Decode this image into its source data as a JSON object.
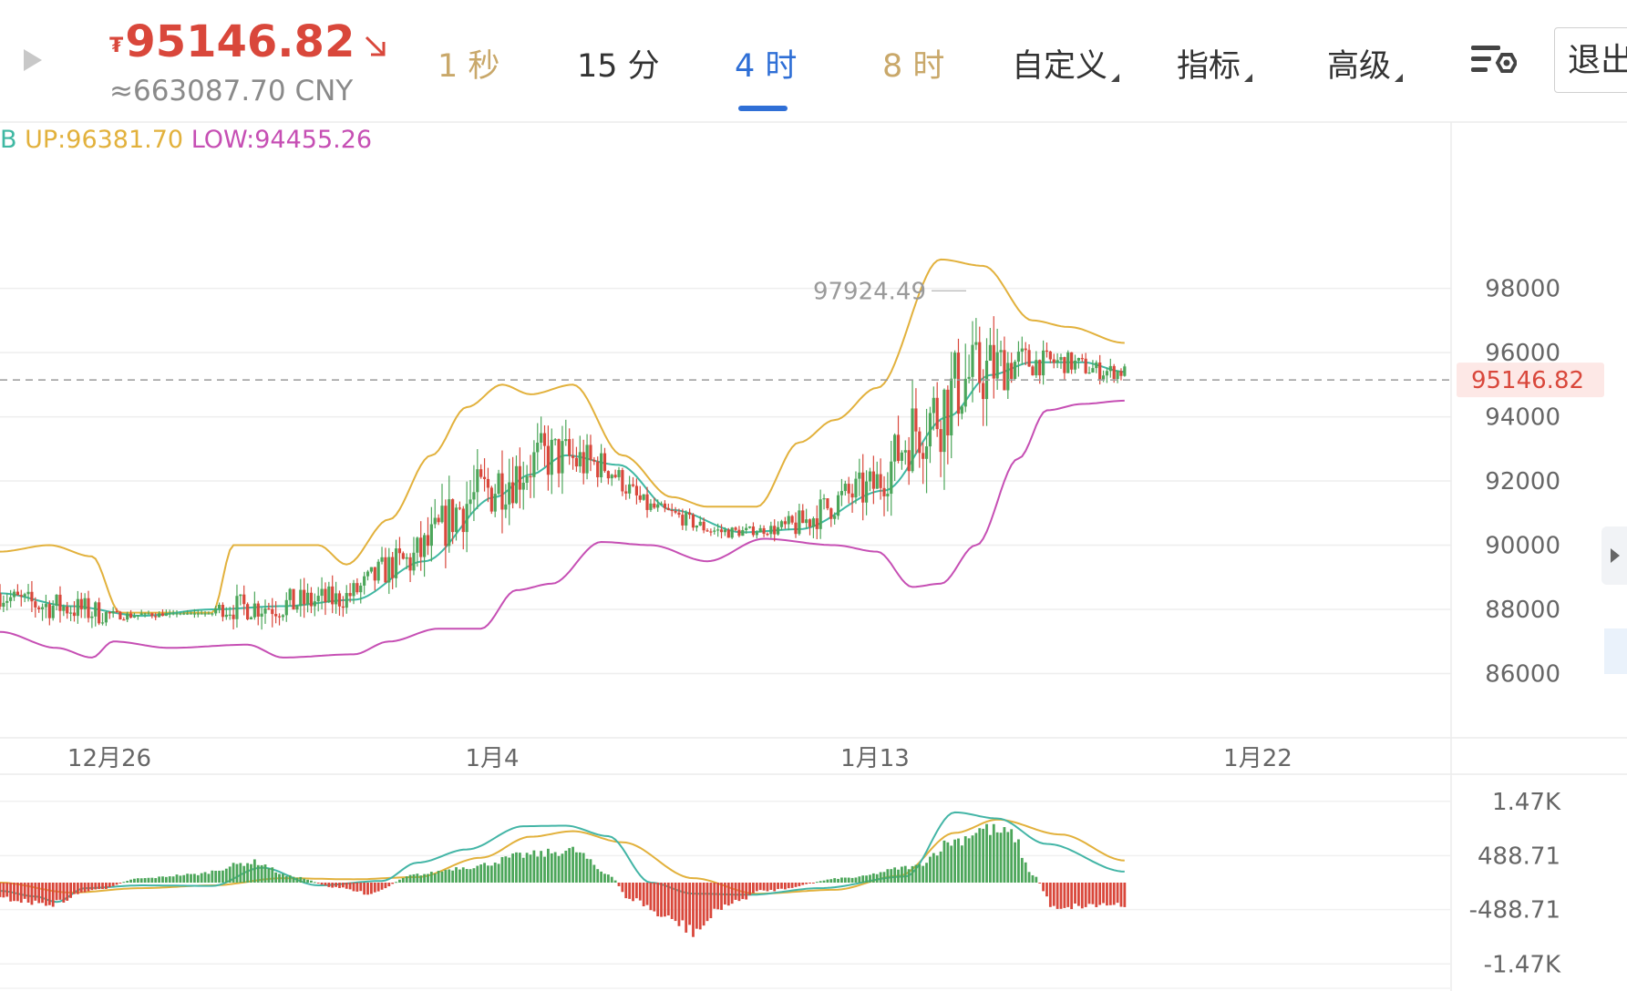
{
  "header": {
    "currency_symbol": "₮",
    "price": "95146.82",
    "cny_value": "≈663087.70 CNY",
    "tabs": [
      {
        "label": "1 秒",
        "state": "dim"
      },
      {
        "label": "15 分",
        "state": "normal"
      },
      {
        "label": "4 时",
        "state": "active"
      },
      {
        "label": "8 时",
        "state": "dim"
      }
    ],
    "menus": [
      "自定义",
      "指标",
      "高级"
    ],
    "exit_label": "退出",
    "icons": [
      "play-icon",
      "down-right-arrow-icon",
      "chart-settings-icon"
    ]
  },
  "indicator_legend": {
    "mid_prefix": "B",
    "up": "UP:96381.70",
    "low": "LOW:94455.26"
  },
  "colors": {
    "up_candle": "#4ca65a",
    "down_candle": "#d9473b",
    "boll_upper": "#e2b13c",
    "boll_mid": "#3fb8a3",
    "boll_lower": "#c64fb4",
    "macd_dif": "#43b5a6",
    "macd_dea": "#e2b13c"
  },
  "chart_data": [
    {
      "type": "candlestick",
      "interval": "4 时",
      "y_ticks": [
        "98000",
        "96000",
        "94000",
        "92000",
        "90000",
        "88000",
        "86000"
      ],
      "x_ticks": [
        "12月26",
        "1月4",
        "1月13",
        "1月22"
      ],
      "ylim": [
        84000,
        102500
      ],
      "current_price": "95146.82",
      "high_marker": "97924.49",
      "grid": true,
      "boll_upper_anchor": [
        [
          0,
          89800
        ],
        [
          14,
          90000
        ],
        [
          26,
          89650
        ],
        [
          34,
          87900
        ],
        [
          60,
          87900
        ],
        [
          66,
          90000
        ],
        [
          90,
          90000
        ],
        [
          98,
          89400
        ],
        [
          110,
          90800
        ],
        [
          122,
          92800
        ],
        [
          132,
          94300
        ],
        [
          142,
          95000
        ],
        [
          150,
          94700
        ],
        [
          162,
          95000
        ],
        [
          176,
          92800
        ],
        [
          190,
          91500
        ],
        [
          200,
          91200
        ],
        [
          214,
          91200
        ],
        [
          226,
          93200
        ],
        [
          236,
          93900
        ],
        [
          248,
          94900
        ],
        [
          266,
          98900
        ],
        [
          278,
          98700
        ],
        [
          292,
          97000
        ],
        [
          302,
          96800
        ],
        [
          318,
          96300
        ]
      ],
      "boll_mid_anchor": [
        [
          0,
          88500
        ],
        [
          20,
          88100
        ],
        [
          40,
          87800
        ],
        [
          60,
          88000
        ],
        [
          80,
          88100
        ],
        [
          100,
          88300
        ],
        [
          120,
          89500
        ],
        [
          140,
          91500
        ],
        [
          150,
          92200
        ],
        [
          160,
          92800
        ],
        [
          175,
          92500
        ],
        [
          190,
          91100
        ],
        [
          210,
          90400
        ],
        [
          226,
          90500
        ],
        [
          250,
          91700
        ],
        [
          268,
          94000
        ],
        [
          280,
          95300
        ],
        [
          292,
          95700
        ],
        [
          306,
          95700
        ],
        [
          318,
          95400
        ]
      ],
      "boll_lower_anchor": [
        [
          0,
          87300
        ],
        [
          16,
          86800
        ],
        [
          26,
          86500
        ],
        [
          32,
          87000
        ],
        [
          48,
          86800
        ],
        [
          70,
          86900
        ],
        [
          80,
          86500
        ],
        [
          100,
          86600
        ],
        [
          110,
          87000
        ],
        [
          124,
          87400
        ],
        [
          136,
          87400
        ],
        [
          146,
          88600
        ],
        [
          156,
          88800
        ],
        [
          170,
          90100
        ],
        [
          184,
          90000
        ],
        [
          200,
          89500
        ],
        [
          216,
          90200
        ],
        [
          236,
          90000
        ],
        [
          248,
          89800
        ],
        [
          258,
          88700
        ],
        [
          266,
          88800
        ],
        [
          276,
          90000
        ],
        [
          288,
          92700
        ],
        [
          296,
          94200
        ],
        [
          306,
          94400
        ],
        [
          318,
          94500
        ]
      ]
    },
    {
      "type": "macd",
      "y_ticks": [
        "1.47K",
        "488.71",
        "-488.71",
        "-1.47K"
      ],
      "ylim": [
        -1960,
        1960
      ],
      "dif_anchor": [
        [
          0,
          -150
        ],
        [
          10,
          -250
        ],
        [
          16,
          -350
        ],
        [
          24,
          -100
        ],
        [
          40,
          -50
        ],
        [
          60,
          -60
        ],
        [
          74,
          270
        ],
        [
          90,
          -50
        ],
        [
          108,
          30
        ],
        [
          118,
          360
        ],
        [
          132,
          600
        ],
        [
          148,
          1020
        ],
        [
          160,
          1030
        ],
        [
          172,
          840
        ],
        [
          184,
          0
        ],
        [
          196,
          -200
        ],
        [
          212,
          -220
        ],
        [
          232,
          -100
        ],
        [
          256,
          110
        ],
        [
          270,
          1270
        ],
        [
          282,
          1160
        ],
        [
          296,
          700
        ],
        [
          318,
          200
        ]
      ],
      "dea_anchor": [
        [
          0,
          0
        ],
        [
          20,
          -180
        ],
        [
          40,
          -100
        ],
        [
          60,
          -50
        ],
        [
          80,
          80
        ],
        [
          100,
          60
        ],
        [
          118,
          100
        ],
        [
          136,
          450
        ],
        [
          150,
          830
        ],
        [
          162,
          930
        ],
        [
          176,
          730
        ],
        [
          196,
          80
        ],
        [
          214,
          -200
        ],
        [
          236,
          -130
        ],
        [
          254,
          120
        ],
        [
          270,
          900
        ],
        [
          282,
          1140
        ],
        [
          300,
          870
        ],
        [
          318,
          400
        ]
      ],
      "hist_anchor": [
        [
          0,
          -300
        ],
        [
          14,
          -400
        ],
        [
          26,
          -150
        ],
        [
          40,
          80
        ],
        [
          54,
          150
        ],
        [
          72,
          380
        ],
        [
          82,
          120
        ],
        [
          96,
          -100
        ],
        [
          104,
          -200
        ],
        [
          118,
          150
        ],
        [
          132,
          290
        ],
        [
          150,
          520
        ],
        [
          162,
          600
        ],
        [
          172,
          160
        ],
        [
          178,
          -300
        ],
        [
          190,
          -700
        ],
        [
          196,
          -900
        ],
        [
          206,
          -400
        ],
        [
          216,
          -150
        ],
        [
          240,
          90
        ],
        [
          258,
          290
        ],
        [
          270,
          780
        ],
        [
          278,
          1000
        ],
        [
          286,
          900
        ],
        [
          292,
          150
        ],
        [
          298,
          -450
        ],
        [
          318,
          -400
        ]
      ]
    }
  ]
}
